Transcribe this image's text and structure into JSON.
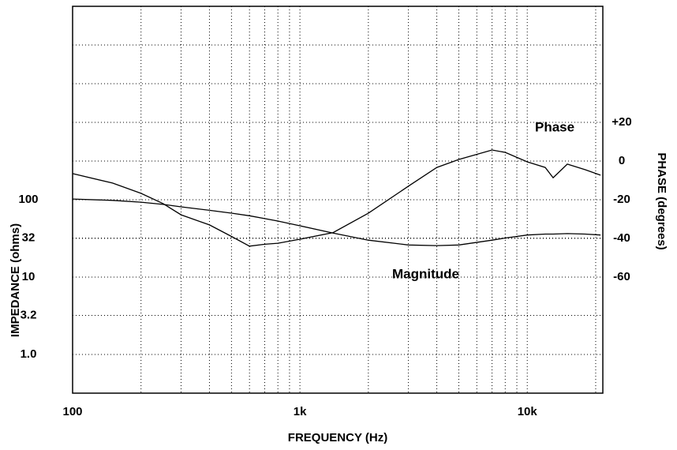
{
  "chart_data": {
    "type": "line",
    "xlabel": "FREQUENCY (Hz)",
    "ylabel": "IMPEDANCE (ohms)",
    "y2label": "PHASE (degrees)",
    "xscale": "log",
    "yscale": "log",
    "grid": true,
    "x": [
      100,
      150,
      200,
      250,
      300,
      400,
      500,
      600,
      700,
      800,
      1000,
      1400,
      2000,
      3000,
      4000,
      5000,
      7000,
      8000,
      10000,
      12000,
      13000,
      15000,
      18000,
      21000
    ],
    "series": [
      {
        "name": "Magnitude",
        "color": "#000000",
        "values": [
          102,
          98,
          93,
          87,
          81,
          73,
          67,
          62,
          57,
          53,
          46,
          37,
          30,
          26,
          25.5,
          26,
          30,
          32,
          35,
          36,
          36,
          36.5,
          36,
          35
        ]
      },
      {
        "name": "Phase",
        "color": "#000000",
        "axis": "y2",
        "values": [
          -6.5,
          -11.4,
          -16.7,
          -22,
          -27.8,
          -33,
          -39,
          -44,
          -43,
          -42.5,
          -40.4,
          -37,
          -27,
          -13,
          -3.3,
          0.8,
          5.7,
          4.5,
          -0.4,
          -3.3,
          -8.6,
          -1.6,
          -4.5,
          -7.3
        ]
      }
    ],
    "xlim": [
      100,
      21500
    ],
    "xticks": [
      100,
      {
        "value": 1000,
        "label": "1k"
      },
      {
        "value": 10000,
        "label": "10k"
      }
    ],
    "xminorticks": [
      200,
      300,
      400,
      500,
      600,
      700,
      800,
      900,
      2000,
      3000,
      4000,
      5000,
      6000,
      7000,
      8000,
      9000,
      20000
    ],
    "ylim": [
      0.316,
      31623
    ],
    "yticks": [
      {
        "value": 1,
        "label": "1.0"
      },
      3.2,
      10,
      32,
      100
    ],
    "y2lim": [
      -120,
      80
    ],
    "y2ticks": [
      {
        "value": 20,
        "label": "+20"
      },
      0,
      -20,
      -40,
      -60
    ],
    "y2grid": [
      40,
      60
    ]
  }
}
